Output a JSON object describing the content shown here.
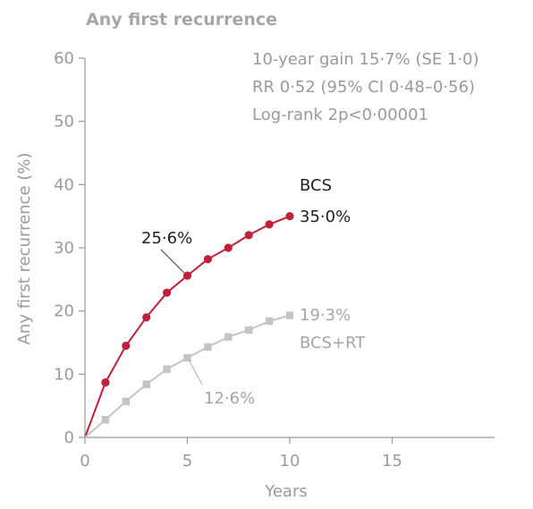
{
  "chart_data": {
    "type": "line",
    "title": "Any first recurrence",
    "xlabel": "Years",
    "ylabel": "Any first recurrence (%)",
    "xlim": [
      0,
      20
    ],
    "ylim": [
      0,
      60
    ],
    "xticks": [
      0,
      5,
      10,
      15
    ],
    "yticks": [
      0,
      10,
      20,
      30,
      40,
      50,
      60
    ],
    "grid": false,
    "stats_text": [
      "10-year gain 15·7% (SE 1·0)",
      "RR 0·52 (95% CI 0·48–0·56)",
      "Log-rank 2p<0·00001"
    ],
    "series": [
      {
        "name": "BCS",
        "color": "#c0203a",
        "marker": "circle",
        "x": [
          0,
          1,
          2,
          3,
          4,
          5,
          6,
          7,
          8,
          9,
          10
        ],
        "values": [
          0,
          8.7,
          14.5,
          19.0,
          22.9,
          25.6,
          28.2,
          30.0,
          32.0,
          33.7,
          35.0
        ],
        "end_label": "35·0%"
      },
      {
        "name": "BCS+RT",
        "color": "#c4c4c4",
        "marker": "square",
        "x": [
          0,
          1,
          2,
          3,
          4,
          5,
          6,
          7,
          8,
          9,
          10
        ],
        "values": [
          0,
          2.8,
          5.7,
          8.4,
          10.8,
          12.6,
          14.3,
          15.9,
          17.0,
          18.4,
          19.3
        ],
        "end_label": "19·3%"
      }
    ],
    "annotations": [
      {
        "text": "25·6%",
        "series": "BCS",
        "x": 5,
        "y": 25.6
      },
      {
        "text": "12·6%",
        "series": "BCS+RT",
        "x": 5,
        "y": 12.6
      }
    ]
  }
}
